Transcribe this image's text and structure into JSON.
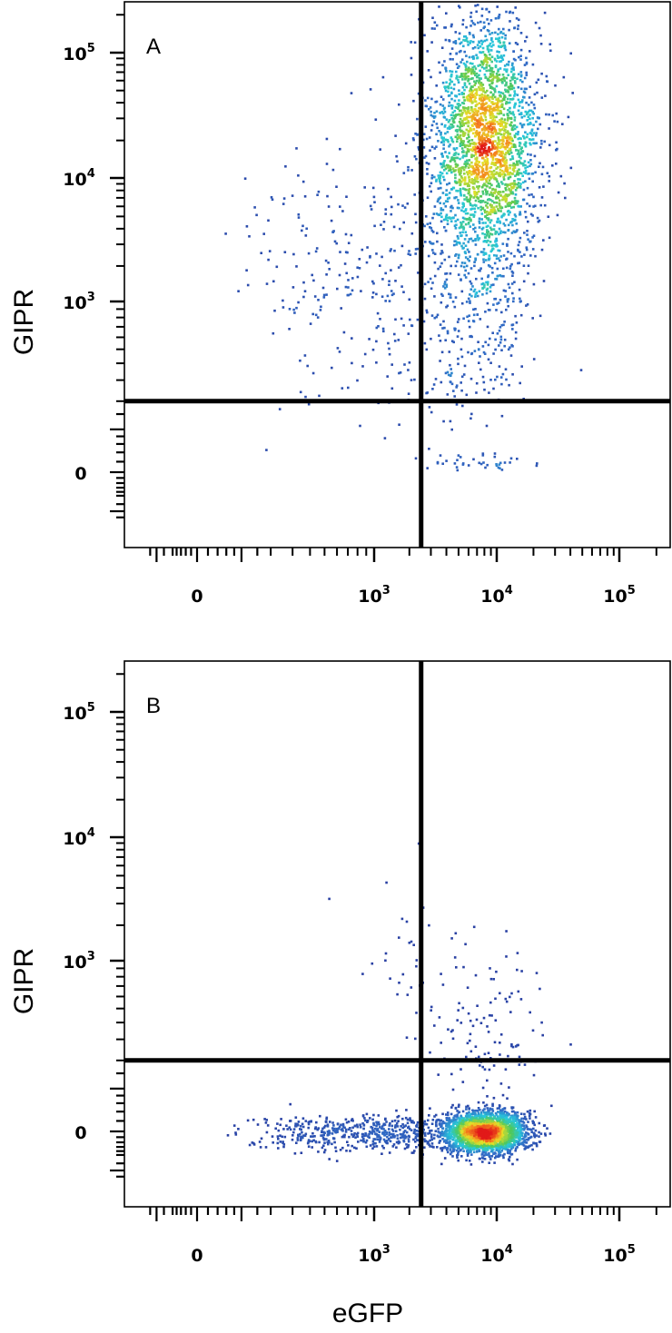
{
  "chart_data": [
    {
      "type": "scatter",
      "panel_label": "A",
      "xlabel": "",
      "ylabel": "GIPR",
      "x_scale": "biexponential",
      "y_scale": "biexponential",
      "xlim": [
        -300,
        250000
      ],
      "ylim": [
        -300,
        250000
      ],
      "x_tick_labels": [
        "0",
        "10^3",
        "10^4",
        "10^5"
      ],
      "y_tick_labels": [
        "0",
        "10^3",
        "10^4",
        "10^5"
      ],
      "quadrant_gate": {
        "x": 2500,
        "y": 200
      },
      "color_scale": "density (blue-cyan-green-yellow-red)",
      "populations": [
        {
          "x_center": 8000,
          "y_center": 20000,
          "x_spread_decades": 0.22,
          "y_spread_decades": 0.5,
          "count": 2600
        },
        {
          "x_center": 1000,
          "y_center": 2000,
          "x_spread_decades": 0.45,
          "y_spread_decades": 0.55,
          "count": 320
        },
        {
          "x_center": 7000,
          "y_center": 800,
          "x_spread_decades": 0.2,
          "y_spread_decades": 0.35,
          "count": 260
        },
        {
          "x_center": 7000,
          "y_center": 20,
          "x_spread_decades": 0.2,
          "y_spread_decades": 0.2,
          "count": 40
        }
      ]
    },
    {
      "type": "scatter",
      "panel_label": "B",
      "xlabel": "eGFP",
      "ylabel": "GIPR",
      "x_scale": "biexponential",
      "y_scale": "biexponential",
      "xlim": [
        -300,
        250000
      ],
      "ylim": [
        -300,
        250000
      ],
      "x_tick_labels": [
        "0",
        "10^3",
        "10^4",
        "10^5"
      ],
      "y_tick_labels": [
        "0",
        "10^3",
        "10^4",
        "10^5"
      ],
      "quadrant_gate": {
        "x": 2500,
        "y": 200
      },
      "color_scale": "density (blue-cyan-green-yellow-red)",
      "populations": [
        {
          "x_center": 8000,
          "y_center": 0,
          "x_spread_decades": 0.17,
          "y_spread_decades": 0.08,
          "count": 2400
        },
        {
          "x_center": 900,
          "y_center": 0,
          "x_spread_decades": 0.4,
          "y_spread_decades": 0.07,
          "count": 520
        },
        {
          "x_center": 8000,
          "y_center": 350,
          "x_spread_decades": 0.25,
          "y_spread_decades": 0.3,
          "count": 120
        },
        {
          "x_center": 1700,
          "y_center": 1500,
          "x_spread_decades": 0.2,
          "y_spread_decades": 0.35,
          "count": 25
        }
      ]
    }
  ]
}
